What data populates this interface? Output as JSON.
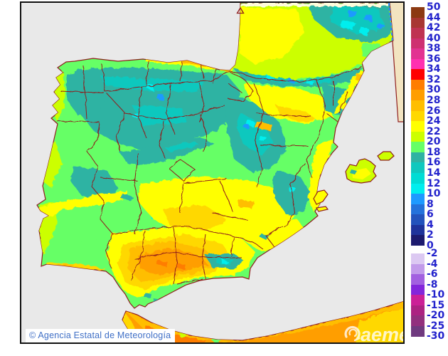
{
  "map": {
    "attribution": "© Agencia Estatal de Meteorología",
    "watermark": "aemet"
  },
  "legend": {
    "upper_labels": [
      "50",
      "44",
      "42",
      "40",
      "38",
      "36",
      "34",
      "32",
      "30",
      "28",
      "26",
      "24",
      "22",
      "20",
      "18",
      "16",
      "14",
      "12",
      "10",
      "8",
      "6",
      "4",
      "2",
      "0"
    ],
    "upper_colors": [
      "#8C3A12",
      "#A83732",
      "#BF3352",
      "#CE3070",
      "#E23292",
      "#FF30B0",
      "#FF0000",
      "#FF7D00",
      "#FF9E00",
      "#FFBE00",
      "#FFD800",
      "#FFFF00",
      "#CCFF00",
      "#66FF66",
      "#2FB3A3",
      "#0FC8BE",
      "#00DCD4",
      "#00EEEE",
      "#1E9AFF",
      "#2472DB",
      "#2353BC",
      "#1F339B",
      "#1C1A6E"
    ],
    "lower_labels": [
      "-2",
      "-4",
      "-6",
      "-8",
      "-10",
      "-15",
      "-20",
      "-25",
      "-30"
    ],
    "lower_colors": [
      "#DCC9F2",
      "#C29BEA",
      "#A260E0",
      "#8326DB",
      "#CB2097",
      "#AC2382",
      "#92307E",
      "#6F3A7F"
    ],
    "label_color": "#2222CC"
  },
  "palette": {
    "darkorange": "#FF7D00",
    "orange": "#FF9E00",
    "amber": "#FFBE00",
    "gold": "#FFD800",
    "yellow": "#FFFF00",
    "yellowgreen": "#CCFF00",
    "green": "#66FF66",
    "teal": "#2FB3A3",
    "tealbright": "#0FC8BE",
    "cyanteal": "#00DCD4",
    "cyan": "#00EEEE",
    "blue": "#1E9AFF",
    "cream": "#FFFDDC"
  },
  "colors": {
    "sea": "#E9E9E9",
    "coast_border": "#8F1D1D",
    "no_data": "#F2E4C0",
    "domain_dash": "#2E86FF",
    "attribution_text": "#3F6FC6",
    "legend_label": "#2222CC",
    "watermark": "#FFFFFF"
  }
}
